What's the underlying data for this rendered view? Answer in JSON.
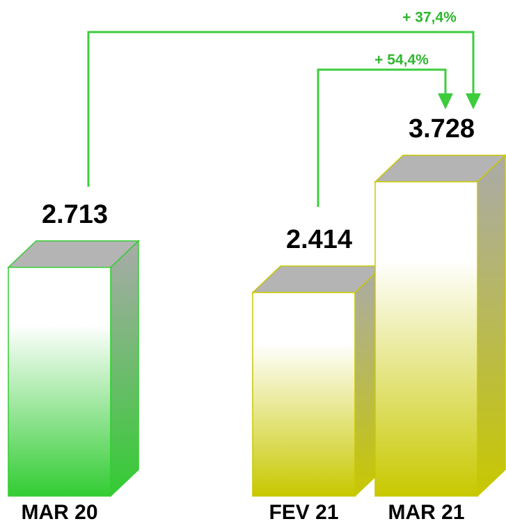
{
  "chart_data": {
    "type": "bar3d",
    "categories": [
      "MAR 20",
      "FEV 21",
      "MAR 21"
    ],
    "values": [
      2713,
      2414,
      3728
    ],
    "value_labels": [
      "2.713",
      "2.414",
      "3.728"
    ],
    "colors": [
      "#33cc33",
      "#c8c800",
      "#c8c800"
    ],
    "annotations": [
      "+ 37,4%",
      "+ 54,4%"
    ]
  }
}
